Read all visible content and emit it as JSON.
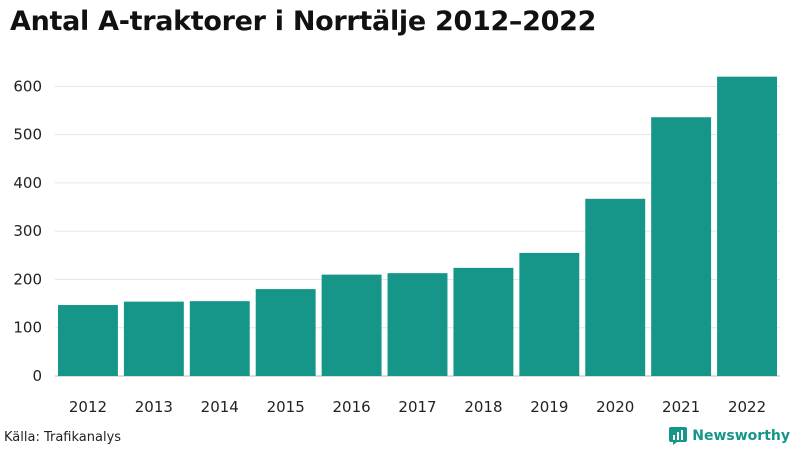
{
  "chart_data": {
    "type": "bar",
    "title": "Antal A-traktorer i Norrtälje 2012–2022",
    "categories": [
      "2012",
      "2013",
      "2014",
      "2015",
      "2016",
      "2017",
      "2018",
      "2019",
      "2020",
      "2021",
      "2022"
    ],
    "values": [
      147,
      154,
      155,
      180,
      210,
      213,
      224,
      255,
      367,
      536,
      620
    ],
    "ylim": [
      0,
      640
    ],
    "yticks": [
      0,
      100,
      200,
      300,
      400,
      500,
      600
    ],
    "grid": true,
    "bar_color": "#159688"
  },
  "footer": {
    "source": "Källa: Trafikanalys",
    "brand": "Newsworthy",
    "brand_color": "#159688",
    "brand_icon": "newsworthy-logo-icon"
  }
}
